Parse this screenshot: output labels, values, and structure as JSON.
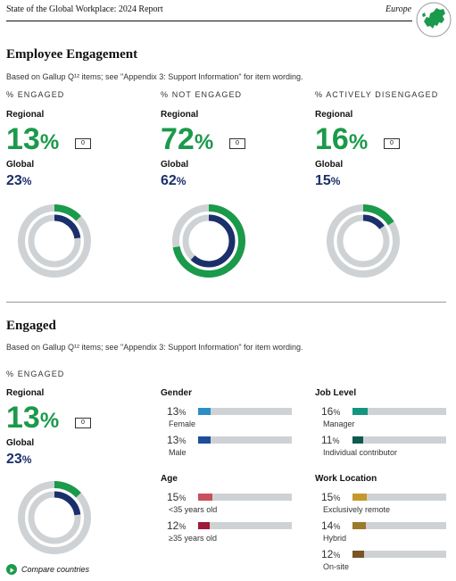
{
  "header": {
    "title": "State of the Global Workplace: 2024 Report",
    "region": "Europe"
  },
  "colors": {
    "green": "#1a9a4a",
    "navy": "#1b2f6b",
    "gray": "#cfd2d4"
  },
  "engagement": {
    "title": "Employee Engagement",
    "note": "Based on Gallup Q¹² items; see \"Appendix 3: Support Information\" for item wording.",
    "columns": [
      {
        "kicker": "% ENGAGED",
        "regional_label": "Regional",
        "regional": 13,
        "badge": "0",
        "global_label": "Global",
        "global": 23
      },
      {
        "kicker": "% NOT ENGAGED",
        "regional_label": "Regional",
        "regional": 72,
        "badge": "0",
        "global_label": "Global",
        "global": 62
      },
      {
        "kicker": "% ACTIVELY DISENGAGED",
        "regional_label": "Regional",
        "regional": 16,
        "badge": "0",
        "global_label": "Global",
        "global": 15
      }
    ]
  },
  "engaged": {
    "title": "Engaged",
    "note": "Based on Gallup Q¹² items; see \"Appendix 3: Support Information\" for item wording.",
    "kicker": "% ENGAGED",
    "regional_label": "Regional",
    "regional": 13,
    "badge": "0",
    "global_label": "Global",
    "global": 23,
    "groups": {
      "gender": {
        "label": "Gender",
        "items": [
          {
            "value": 13,
            "label": "Female",
            "color": "#2a8fc7"
          },
          {
            "value": 13,
            "label": "Male",
            "color": "#1f4e99"
          }
        ]
      },
      "age": {
        "label": "Age",
        "items": [
          {
            "value": 15,
            "label": "<35 years old",
            "color": "#c8505f"
          },
          {
            "value": 12,
            "label": "≥35 years old",
            "color": "#9e1b3a"
          }
        ]
      },
      "job": {
        "label": "Job Level",
        "items": [
          {
            "value": 16,
            "label": "Manager",
            "color": "#14957f"
          },
          {
            "value": 11,
            "label": "Individual contributor",
            "color": "#0e5a4e"
          }
        ]
      },
      "location": {
        "label": "Work Location",
        "items": [
          {
            "value": 15,
            "label": "Exclusively remote",
            "color": "#c39a2a"
          },
          {
            "value": 14,
            "label": "Hybrid",
            "color": "#9a7a2c"
          },
          {
            "value": 12,
            "label": "On-site",
            "color": "#7a5424"
          }
        ]
      }
    },
    "compare_label": "Compare countries"
  },
  "pct_unit": "%"
}
